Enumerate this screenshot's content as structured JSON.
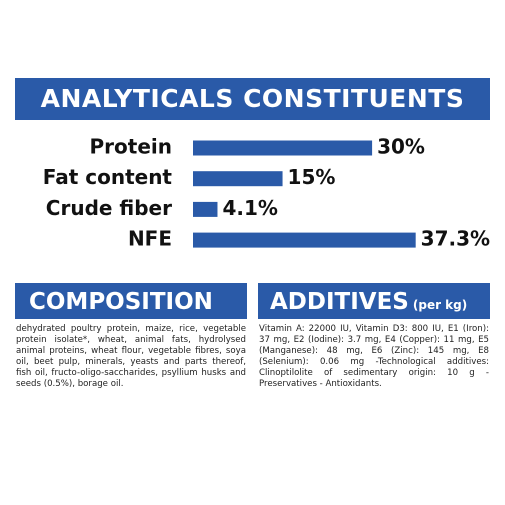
{
  "chart_data": {
    "type": "bar",
    "title": "ANALYTICALS CONSTITUENTS",
    "categories": [
      "Protein",
      "Fat content",
      "Crude fiber",
      "NFE"
    ],
    "values": [
      30,
      15,
      4.1,
      37.3
    ],
    "value_labels": [
      "30%",
      "15%",
      "4.1%",
      "37.3%"
    ],
    "color": "#2a5aa8"
  },
  "composition": {
    "title": "COMPOSITION",
    "text": "dehydrated poultry protein, maize, rice, vegetable protein isolate*, wheat, animal fats, hydrolysed animal proteins, wheat flour, vegetable fibres, soya oil, beet pulp, minerals, yeasts and parts thereof, fish oil, fructo-oligo-saccharides, psyllium husks and seeds (0.5%), borage oil."
  },
  "additives": {
    "title": "ADDITIVES",
    "subtitle": "(per kg)",
    "text": "Vitamin A: 22000 IU, Vitamin D3: 800 IU, E1 (Iron): 37 mg, E2 (Iodine): 3.7 mg, E4 (Copper): 11 mg, E5 (Manganese): 48 mg, E6 (Zinc): 145 mg, E8 (Selenium): 0.06 mg -Technological additives: Clinoptilolite of sedimentary origin: 10 g - Preservatives - Antioxidants."
  }
}
